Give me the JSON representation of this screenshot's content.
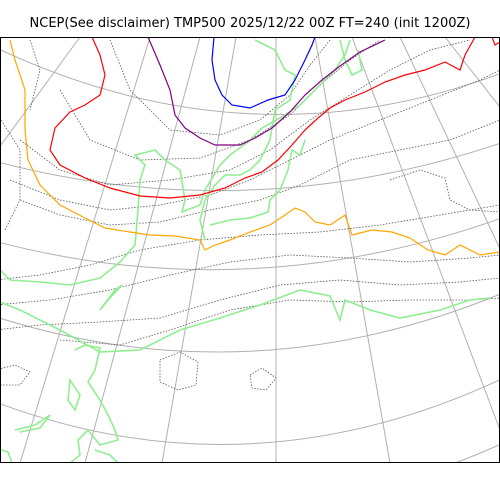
{
  "title": "NCEP(See disclaimer) TMP500 2025/12/22 00Z FT=240 (init 1200Z)",
  "colors": {
    "graticule": "#b0b0b0",
    "coastline": "#90ee90",
    "isotherm_minor": "#555555",
    "isotherm_orange": "#ffa500",
    "isotherm_red": "#ff0000",
    "isotherm_purple": "#800080",
    "isotherm_blue": "#0000ff",
    "frame": "#000000"
  }
}
